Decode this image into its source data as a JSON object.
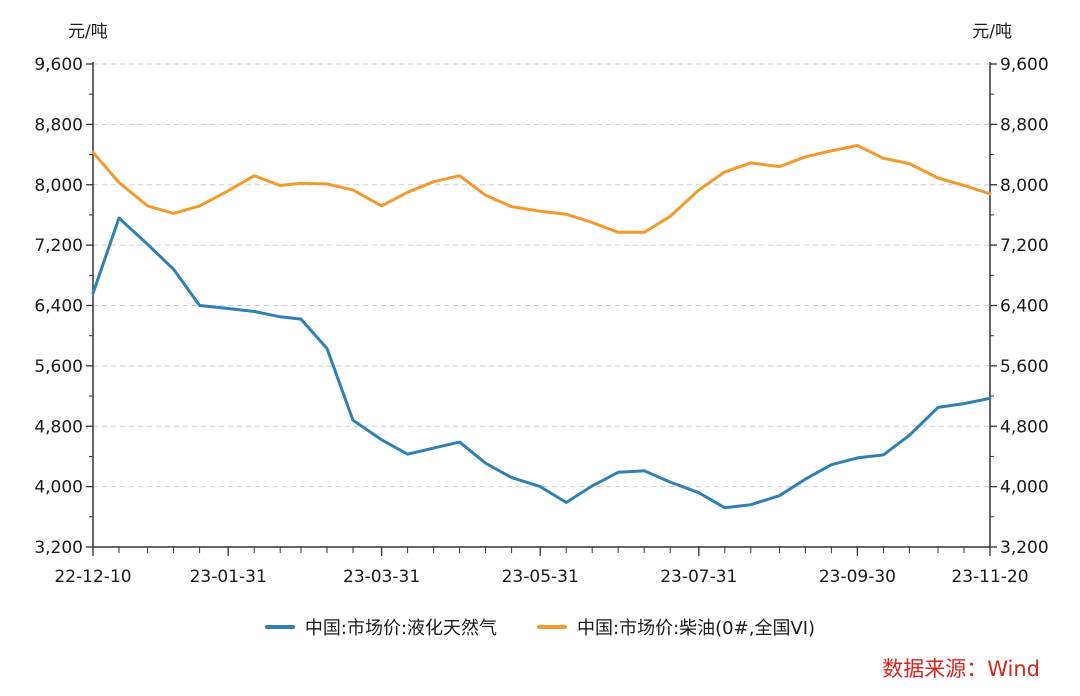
{
  "chart_data": {
    "type": "line",
    "y_unit_left": "元/吨",
    "y_unit_right": "元/吨",
    "ylim": [
      3200,
      9600
    ],
    "yticks": [
      3200,
      4000,
      4800,
      5600,
      6400,
      7200,
      8000,
      8800,
      9600
    ],
    "ytick_labels": [
      "3,200",
      "4,000",
      "4,800",
      "5,600",
      "6,400",
      "7,200",
      "8,000",
      "8,800",
      "9,600"
    ],
    "xlim": [
      "2022-12-10",
      "2023-11-20"
    ],
    "xtick_labels": [
      "22-12-10",
      "23-01-31",
      "23-03-31",
      "23-05-31",
      "23-07-31",
      "23-09-30",
      "23-11-20"
    ],
    "xtick_dates": [
      "2022-12-10",
      "2023-01-31",
      "2023-03-31",
      "2023-05-31",
      "2023-07-31",
      "2023-09-30",
      "2023-11-20"
    ],
    "x": [
      "2022-12-10",
      "2022-12-20",
      "2022-12-31",
      "2023-01-10",
      "2023-01-20",
      "2023-01-31",
      "2023-02-10",
      "2023-02-20",
      "2023-02-28",
      "2023-03-10",
      "2023-03-20",
      "2023-03-31",
      "2023-04-10",
      "2023-04-20",
      "2023-04-30",
      "2023-05-10",
      "2023-05-20",
      "2023-05-31",
      "2023-06-10",
      "2023-06-20",
      "2023-06-30",
      "2023-07-10",
      "2023-07-20",
      "2023-07-31",
      "2023-08-10",
      "2023-08-20",
      "2023-08-31",
      "2023-09-10",
      "2023-09-20",
      "2023-09-30",
      "2023-10-10",
      "2023-10-20",
      "2023-10-31",
      "2023-11-10",
      "2023-11-20"
    ],
    "series": [
      {
        "name": "中国:市场价:液化天然气",
        "color": "#2f80b5",
        "values": [
          6560,
          7560,
          7210,
          6880,
          6400,
          6360,
          6320,
          6250,
          6220,
          5830,
          4880,
          4620,
          4430,
          4510,
          4590,
          4310,
          4120,
          4000,
          3790,
          4010,
          4190,
          4210,
          4060,
          3920,
          3720,
          3760,
          3880,
          4100,
          4290,
          4380,
          4420,
          4680,
          5050,
          5100,
          5170
        ]
      },
      {
        "name": "中国:市场价:柴油(0#,全国VI)",
        "color": "#f39a2a",
        "values": [
          8430,
          8030,
          7720,
          7620,
          7720,
          7920,
          8120,
          7990,
          8020,
          8010,
          7930,
          7720,
          7900,
          8040,
          8120,
          7860,
          7710,
          7650,
          7610,
          7500,
          7370,
          7370,
          7580,
          7930,
          8170,
          8290,
          8240,
          8370,
          8450,
          8520,
          8350,
          8280,
          8090,
          7990,
          7880
        ]
      }
    ],
    "source_text": "数据来源：Wind"
  }
}
